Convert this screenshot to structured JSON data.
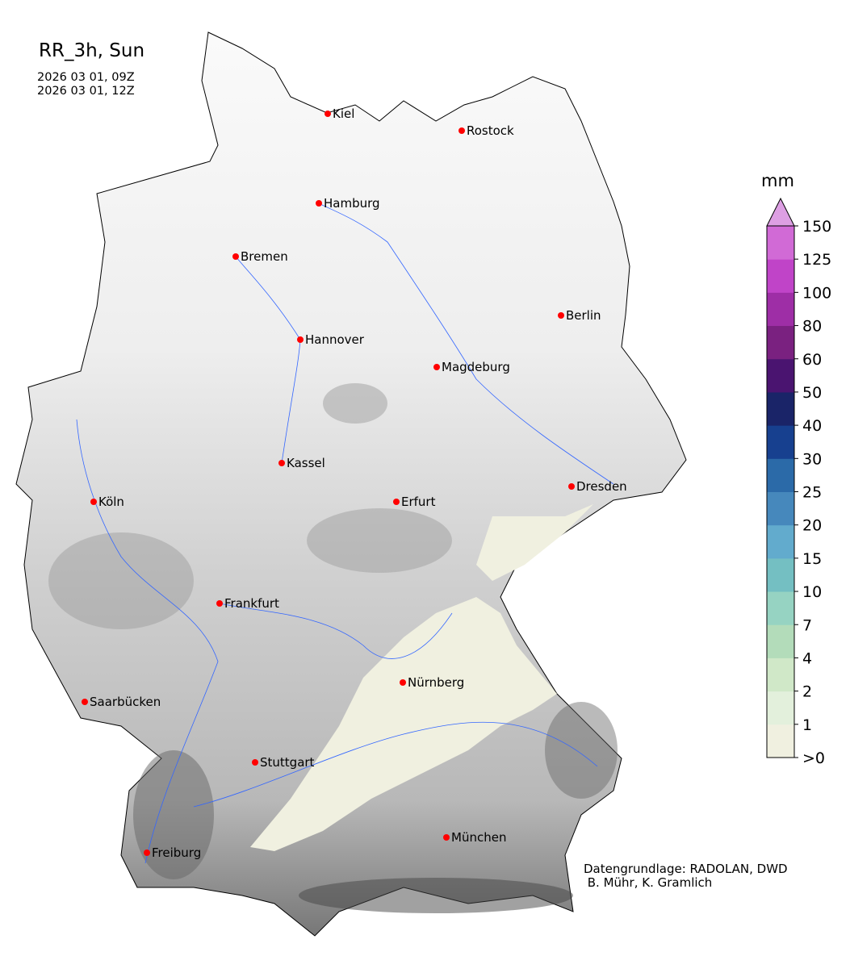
{
  "title": "RR_3h, Sun",
  "time_start": "2026 03 01, 09Z",
  "time_end": "2026 03 01, 12Z",
  "colorbar": {
    "unit": "mm",
    "ticks": [
      ">0",
      "1",
      "2",
      "4",
      "7",
      "10",
      "15",
      "20",
      "25",
      "30",
      "40",
      "50",
      "60",
      "80",
      "100",
      "125",
      "150"
    ],
    "colors": [
      "#f0f0e0",
      "#e3f0dc",
      "#d0e8c8",
      "#b3dcba",
      "#96d3c2",
      "#74bfc2",
      "#62abcd",
      "#4688bc",
      "#2b6aa8",
      "#17408f",
      "#1a2468",
      "#4a1470",
      "#7a2180",
      "#9e2ea6",
      "#c044c8",
      "#d16ad6"
    ],
    "extend_color": "#dd9fe3"
  },
  "cities": [
    "Kiel",
    "Rostock",
    "Hamburg",
    "Bremen",
    "Berlin",
    "Hannover",
    "Magdeburg",
    "Kassel",
    "Köln",
    "Erfurt",
    "Dresden",
    "Frankfurt",
    "Nürnberg",
    "Saarbücken",
    "Stuttgart",
    "München",
    "Freiburg"
  ],
  "colors": {
    "city_marker": "#ff0000",
    "river": "#3366ff",
    "terrain_light": "#f2f2f2",
    "terrain_dark": "#555555",
    "precip_trace": "#f0f0e0"
  },
  "credit_line1": "Datengrundlage: RADOLAN, DWD",
  "credit_line2": " B. Mühr, K. Gramlich"
}
